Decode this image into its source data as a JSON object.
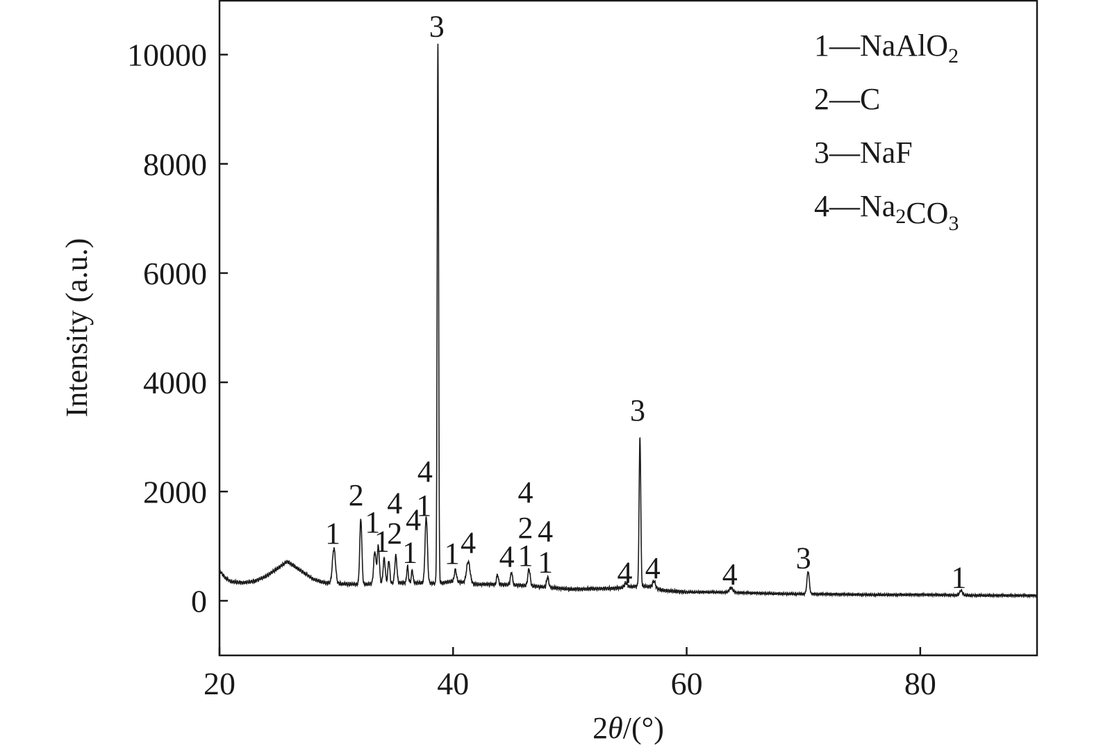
{
  "chart_data": {
    "type": "line",
    "title": "",
    "xlabel": "2θ/(°)",
    "ylabel": "Intensity (a.u.)",
    "xlim": [
      20,
      90
    ],
    "ylim": [
      -1000,
      11000
    ],
    "xticks": [
      20,
      40,
      60,
      80
    ],
    "yticks": [
      0,
      2000,
      4000,
      6000,
      8000,
      10000
    ],
    "grid": false,
    "legend_position": "top-right",
    "legend": [
      {
        "num": "1",
        "dash": "—",
        "parts": [
          {
            "t": "NaAlO"
          },
          {
            "t": "2",
            "sub": true
          }
        ]
      },
      {
        "num": "2",
        "dash": "—",
        "parts": [
          {
            "t": "C"
          }
        ]
      },
      {
        "num": "3",
        "dash": "—",
        "parts": [
          {
            "t": "NaF"
          }
        ]
      },
      {
        "num": "4",
        "dash": "—",
        "parts": [
          {
            "t": "Na"
          },
          {
            "t": "2",
            "sub": true
          },
          {
            "t": "CO"
          },
          {
            "t": "3",
            "sub": true
          }
        ]
      }
    ],
    "series": [
      {
        "baseline": [
          [
            20,
            560
          ],
          [
            20.5,
            420
          ],
          [
            21,
            350
          ],
          [
            22,
            330
          ],
          [
            23,
            360
          ],
          [
            24,
            450
          ],
          [
            25,
            600
          ],
          [
            25.8,
            720
          ],
          [
            26.5,
            620
          ],
          [
            27.2,
            520
          ],
          [
            28,
            400
          ],
          [
            29,
            330
          ],
          [
            30.5,
            310
          ],
          [
            32,
            300
          ],
          [
            34,
            320
          ],
          [
            36,
            330
          ],
          [
            37,
            330
          ],
          [
            38.3,
            320
          ],
          [
            39.2,
            330
          ],
          [
            40,
            360
          ],
          [
            42,
            300
          ],
          [
            44,
            300
          ],
          [
            46,
            280
          ],
          [
            48,
            250
          ],
          [
            50,
            210
          ],
          [
            52,
            220
          ],
          [
            54,
            230
          ],
          [
            55.8,
            270
          ],
          [
            56.8,
            260
          ],
          [
            58,
            190
          ],
          [
            60,
            160
          ],
          [
            62,
            160
          ],
          [
            64,
            150
          ],
          [
            66,
            140
          ],
          [
            68,
            130
          ],
          [
            70,
            125
          ],
          [
            72,
            120
          ],
          [
            76,
            110
          ],
          [
            80,
            110
          ],
          [
            84,
            100
          ],
          [
            88,
            95
          ],
          [
            89.9,
            95
          ]
        ],
        "peaks": [
          {
            "x": 29.8,
            "y": 960,
            "w": 0.13
          },
          {
            "x": 32.1,
            "y": 1500,
            "w": 0.09
          },
          {
            "x": 33.3,
            "y": 900,
            "w": 0.1
          },
          {
            "x": 33.6,
            "y": 1000,
            "w": 0.09
          },
          {
            "x": 34.1,
            "y": 780,
            "w": 0.09
          },
          {
            "x": 34.5,
            "y": 740,
            "w": 0.08
          },
          {
            "x": 35.1,
            "y": 830,
            "w": 0.09
          },
          {
            "x": 36.1,
            "y": 630,
            "w": 0.07
          },
          {
            "x": 36.5,
            "y": 560,
            "w": 0.07
          },
          {
            "x": 37.7,
            "y": 1540,
            "w": 0.1
          },
          {
            "x": 38.7,
            "y": 10200,
            "w": 0.06
          },
          {
            "x": 40.2,
            "y": 570,
            "w": 0.09
          },
          {
            "x": 41.3,
            "y": 720,
            "w": 0.15
          },
          {
            "x": 43.8,
            "y": 480,
            "w": 0.08
          },
          {
            "x": 45.0,
            "y": 520,
            "w": 0.09
          },
          {
            "x": 46.5,
            "y": 580,
            "w": 0.1
          },
          {
            "x": 48.1,
            "y": 430,
            "w": 0.09
          },
          {
            "x": 54.8,
            "y": 330,
            "w": 0.12
          },
          {
            "x": 56.0,
            "y": 3000,
            "w": 0.07
          },
          {
            "x": 57.2,
            "y": 360,
            "w": 0.12
          },
          {
            "x": 63.8,
            "y": 240,
            "w": 0.15
          },
          {
            "x": 70.4,
            "y": 540,
            "w": 0.1
          },
          {
            "x": 83.5,
            "y": 190,
            "w": 0.12
          }
        ]
      }
    ],
    "peak_labels": [
      {
        "x": 29.7,
        "y": 1050,
        "text": "1"
      },
      {
        "x": 31.7,
        "y": 1750,
        "text": "2"
      },
      {
        "x": 33.1,
        "y": 1250,
        "text": "1"
      },
      {
        "x": 33.9,
        "y": 900,
        "text": "1"
      },
      {
        "x": 35.0,
        "y": 1600,
        "text": "4"
      },
      {
        "x": 35.0,
        "y": 1050,
        "text": "2"
      },
      {
        "x": 36.6,
        "y": 1300,
        "text": "4"
      },
      {
        "x": 36.3,
        "y": 700,
        "text": "1"
      },
      {
        "x": 37.6,
        "y": 2180,
        "text": "4"
      },
      {
        "x": 37.5,
        "y": 1560,
        "text": "1"
      },
      {
        "x": 38.6,
        "y": 10330,
        "text": "3"
      },
      {
        "x": 39.9,
        "y": 680,
        "text": "1"
      },
      {
        "x": 41.3,
        "y": 880,
        "text": "4"
      },
      {
        "x": 44.6,
        "y": 620,
        "text": "4"
      },
      {
        "x": 46.2,
        "y": 1800,
        "text": "4"
      },
      {
        "x": 46.2,
        "y": 1150,
        "text": "2"
      },
      {
        "x": 46.2,
        "y": 640,
        "text": "1"
      },
      {
        "x": 47.9,
        "y": 1090,
        "text": "4"
      },
      {
        "x": 47.9,
        "y": 520,
        "text": "1"
      },
      {
        "x": 54.7,
        "y": 330,
        "text": "4"
      },
      {
        "x": 55.8,
        "y": 3300,
        "text": "3"
      },
      {
        "x": 57.1,
        "y": 410,
        "text": "4"
      },
      {
        "x": 63.7,
        "y": 300,
        "text": "4"
      },
      {
        "x": 70.0,
        "y": 600,
        "text": "3"
      },
      {
        "x": 83.3,
        "y": 240,
        "text": "1"
      }
    ]
  }
}
